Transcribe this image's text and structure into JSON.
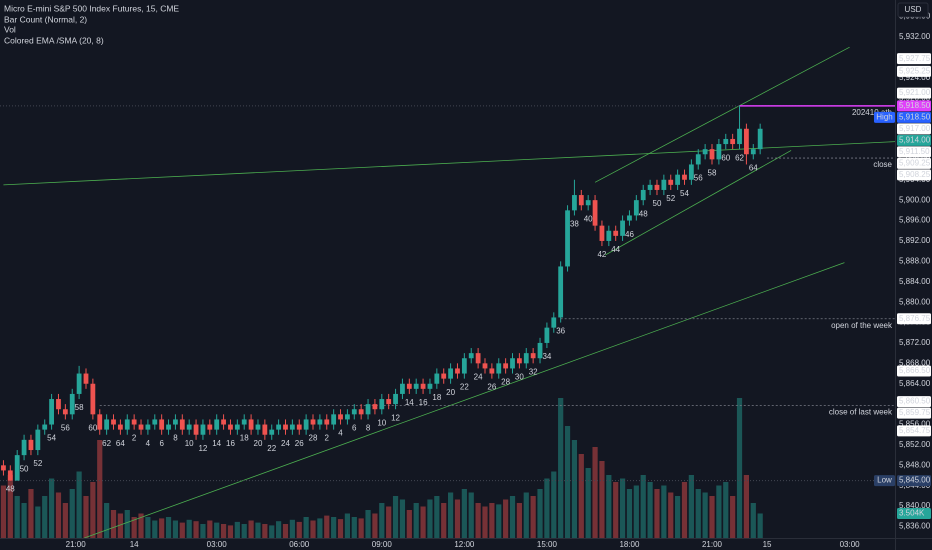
{
  "header": {
    "title": "Micro E-mini S&P 500 Index Futures, 15, CME",
    "indicators": [
      "Bar Count (Normal, 2)",
      "Vol",
      "Colored EMA /SMA (20, 8)"
    ],
    "currency": "USD"
  },
  "chart_data": {
    "type": "candlestick",
    "up_color": "#26a69a",
    "down_color": "#ef5350",
    "grid": false,
    "ylim": [
      5833.75,
      5939.25
    ],
    "xlim": [
      -0.5,
      129.6
    ],
    "yticks": [
      {
        "value": 5836,
        "label": "5,836.00"
      },
      {
        "value": 5840,
        "label": "5,840.00"
      },
      {
        "value": 5844,
        "label": "5,844.00"
      },
      {
        "value": 5848,
        "label": "5,848.00"
      },
      {
        "value": 5852,
        "label": "5,852.00"
      },
      {
        "value": 5856,
        "label": "5,856.00"
      },
      {
        "value": 5860,
        "label": "5,860.00"
      },
      {
        "value": 5864,
        "label": "5,864.00"
      },
      {
        "value": 5868,
        "label": "5,868.00"
      },
      {
        "value": 5872,
        "label": "5,872.00"
      },
      {
        "value": 5876,
        "label": "5,876.00"
      },
      {
        "value": 5880,
        "label": "5,880.00"
      },
      {
        "value": 5884,
        "label": "5,884.00"
      },
      {
        "value": 5888,
        "label": "5,888.00"
      },
      {
        "value": 5892,
        "label": "5,892.00"
      },
      {
        "value": 5896,
        "label": "5,896.00"
      },
      {
        "value": 5900,
        "label": "5,900.00"
      },
      {
        "value": 5904,
        "label": "5,904.00"
      },
      {
        "value": 5908,
        "label": "5,908.00"
      },
      {
        "value": 5912,
        "label": "5,912.00"
      },
      {
        "value": 5916,
        "label": "5,916.00"
      },
      {
        "value": 5920,
        "label": "5,920.00"
      },
      {
        "value": 5924,
        "label": "5,924.00"
      },
      {
        "value": 5928,
        "label": "5,928.00"
      },
      {
        "value": 5932,
        "label": "5,932.00"
      },
      {
        "value": 5936,
        "label": "5,936.00"
      }
    ],
    "xticks": [
      {
        "value": 10.5,
        "label": "21:00"
      },
      {
        "value": 19,
        "label": "14"
      },
      {
        "value": 31,
        "label": "03:00"
      },
      {
        "value": 43,
        "label": "06:00"
      },
      {
        "value": 55,
        "label": "09:00"
      },
      {
        "value": 67,
        "label": "12:00"
      },
      {
        "value": 79,
        "label": "15:00"
      },
      {
        "value": 91,
        "label": "18:00"
      },
      {
        "value": 103,
        "label": "21:00"
      },
      {
        "value": 111,
        "label": "15"
      },
      {
        "value": 123,
        "label": "03:00"
      }
    ],
    "open": [
      5848,
      5847,
      5845,
      5850,
      5853,
      5851,
      5855,
      5856,
      5861,
      5859,
      5858,
      5862,
      5866,
      5864,
      5858,
      5855,
      5857,
      5856,
      5855,
      5857,
      5856,
      5855,
      5856,
      5857,
      5855,
      5856,
      5857,
      5855,
      5856,
      5854,
      5856,
      5855,
      5857,
      5856,
      5855,
      5856,
      5857,
      5855,
      5856,
      5854,
      5855,
      5856,
      5855,
      5856,
      5855,
      5857,
      5856,
      5857,
      5856,
      5858,
      5857,
      5858,
      5859,
      5858,
      5860,
      5859,
      5861,
      5860,
      5862,
      5864,
      5863,
      5864,
      5863,
      5864,
      5866,
      5865,
      5867,
      5866,
      5869,
      5870,
      5868,
      5867,
      5866,
      5868,
      5867,
      5869,
      5868,
      5870,
      5869,
      5872,
      5875,
      5877,
      5887,
      5898,
      5901,
      5899,
      5900,
      5895,
      5892,
      5894,
      5893,
      5896,
      5897,
      5900,
      5902,
      5903,
      5902,
      5904,
      5903,
      5905,
      5904,
      5907,
      5909,
      5910,
      5908,
      5911,
      5912,
      5911,
      5914,
      5909,
      5910
    ],
    "high": [
      5849,
      5848,
      5851,
      5854,
      5854,
      5856,
      5857,
      5862,
      5862,
      5860,
      5863,
      5867.5,
      5867,
      5865,
      5859,
      5858,
      5858,
      5857,
      5858,
      5858,
      5857,
      5857,
      5858,
      5858,
      5857,
      5858,
      5858,
      5857,
      5857,
      5857,
      5857,
      5858,
      5858,
      5857,
      5857,
      5858,
      5858,
      5857,
      5857,
      5856,
      5857,
      5857,
      5857,
      5857,
      5858,
      5858,
      5858,
      5858,
      5859,
      5859,
      5859,
      5860,
      5860,
      5861,
      5861,
      5862,
      5862,
      5863,
      5865,
      5865,
      5865,
      5865,
      5865,
      5867,
      5867,
      5868,
      5868,
      5870,
      5871,
      5871,
      5869,
      5868,
      5869,
      5869,
      5870,
      5870,
      5871,
      5871,
      5873,
      5876,
      5878,
      5888,
      5899,
      5904,
      5902,
      5901,
      5901,
      5896,
      5895,
      5895,
      5897,
      5898,
      5901,
      5903,
      5904,
      5904,
      5905,
      5905,
      5906,
      5906,
      5908,
      5910,
      5911,
      5911,
      5912,
      5913,
      5913,
      5918.5,
      5915,
      5911,
      5915
    ],
    "low": [
      5846,
      5845,
      5846,
      5849,
      5850,
      5850,
      5854,
      5855,
      5858,
      5857,
      5857,
      5861,
      5863,
      5857,
      5854,
      5854,
      5855,
      5854,
      5854,
      5855,
      5854,
      5854,
      5855,
      5854,
      5854,
      5855,
      5854,
      5854,
      5853,
      5853,
      5854,
      5854,
      5855,
      5854,
      5854,
      5855,
      5854,
      5854,
      5853,
      5853,
      5854,
      5854,
      5854,
      5854,
      5854,
      5855,
      5855,
      5855,
      5855,
      5856,
      5856,
      5857,
      5857,
      5857,
      5858,
      5858,
      5859,
      5859,
      5861,
      5862,
      5862,
      5862,
      5862,
      5863,
      5864,
      5864,
      5865,
      5865,
      5868,
      5867,
      5866,
      5865,
      5865,
      5866,
      5866,
      5867,
      5867,
      5868,
      5868,
      5871,
      5874,
      5876,
      5886,
      5897,
      5898,
      5898,
      5894,
      5891,
      5891,
      5892,
      5892,
      5895,
      5896,
      5899,
      5901,
      5901,
      5901,
      5902,
      5902,
      5903,
      5903,
      5906,
      5908,
      5907,
      5907,
      5910,
      5910,
      5910,
      5907,
      5908,
      5909
    ],
    "close": [
      5847,
      5845,
      5850,
      5853,
      5851,
      5855,
      5856,
      5861,
      5859,
      5858,
      5862,
      5866,
      5864,
      5858,
      5855,
      5857,
      5856,
      5855,
      5857,
      5856,
      5855,
      5856,
      5857,
      5855,
      5856,
      5857,
      5855,
      5856,
      5854,
      5856,
      5855,
      5857,
      5856,
      5855,
      5856,
      5857,
      5855,
      5856,
      5854,
      5855,
      5856,
      5855,
      5856,
      5855,
      5857,
      5856,
      5857,
      5856,
      5858,
      5857,
      5858,
      5859,
      5858,
      5860,
      5859,
      5861,
      5860,
      5862,
      5864,
      5863,
      5864,
      5863,
      5864,
      5866,
      5865,
      5867,
      5866,
      5869,
      5870,
      5868,
      5867,
      5866,
      5868,
      5867,
      5869,
      5868,
      5870,
      5869,
      5872,
      5875,
      5877,
      5887,
      5898,
      5901,
      5899,
      5900,
      5895,
      5892,
      5894,
      5893,
      5896,
      5897,
      5900,
      5902,
      5903,
      5902,
      5904,
      5903,
      5905,
      5904,
      5907,
      5909,
      5910,
      5908,
      5911,
      5912,
      5911,
      5914,
      5909,
      5910,
      5914
    ],
    "volume": [
      7500,
      9000,
      6000,
      5000,
      7000,
      4500,
      6000,
      8500,
      6500,
      5000,
      7000,
      9500,
      6000,
      8000,
      14000,
      5000,
      4000,
      3500,
      4000,
      3000,
      3500,
      3000,
      2500,
      2800,
      3000,
      2500,
      2200,
      2600,
      2400,
      2000,
      2500,
      2200,
      2000,
      1800,
      2300,
      2000,
      2500,
      2200,
      2000,
      1800,
      2400,
      2000,
      2600,
      2300,
      3000,
      2500,
      2800,
      3200,
      3000,
      2700,
      3500,
      3000,
      2800,
      4000,
      3500,
      5000,
      4500,
      6000,
      5500,
      4000,
      5000,
      4500,
      5500,
      6000,
      5000,
      6500,
      5500,
      7000,
      6500,
      5000,
      4500,
      5000,
      4800,
      5500,
      6000,
      5000,
      6500,
      6000,
      7000,
      8500,
      9500,
      20000,
      16000,
      14000,
      12000,
      10000,
      13000,
      11000,
      9000,
      8000,
      8500,
      7000,
      7500,
      9000,
      8000,
      7000,
      7500,
      6500,
      6000,
      8000,
      9000,
      7000,
      6500,
      6000,
      7500,
      8000,
      6000,
      20000,
      9000,
      5000,
      3504
    ],
    "volume_last_label": "3.504K",
    "bar_count": [
      48,
      50,
      52,
      54,
      56,
      58,
      60,
      62,
      64,
      2,
      4,
      6,
      8,
      10,
      12,
      14,
      16,
      18,
      20,
      22,
      24,
      26,
      28,
      2,
      4,
      6,
      8,
      10,
      12,
      14,
      16,
      18,
      20,
      22,
      24,
      26,
      28,
      30,
      32,
      34,
      36,
      38,
      40,
      42,
      44,
      46,
      48,
      50,
      52,
      54,
      56,
      58,
      60,
      62,
      64
    ],
    "high_marker": {
      "label": "High",
      "value": 5918.5,
      "value_label": "5,918.50"
    },
    "low_marker": {
      "label": "Low",
      "value": 5845,
      "value_label": "5,845.00"
    },
    "levels": [
      {
        "name": "202410 ath",
        "value": 5918.5,
        "from": 107,
        "color": "#e040fb"
      },
      {
        "name": "close",
        "value": 5908.25,
        "from": 111,
        "color": "#787b86"
      },
      {
        "name": "open of the week",
        "value": 5876.75,
        "from": 81,
        "color": "#787b86"
      },
      {
        "name": "close of last week",
        "value": 5859.75,
        "from": 14,
        "color": "#787b86"
      }
    ],
    "trendlines": [
      {
        "x": [
          0,
          130
        ],
        "y": [
          5903,
          5911.5
        ],
        "color": "#4caf50"
      },
      {
        "x": [
          86,
          123
        ],
        "y": [
          5903.5,
          5930
        ],
        "color": "#4caf50"
      },
      {
        "x": [
          87.5,
          114.5
        ],
        "y": [
          5889.25,
          5909.75
        ],
        "color": "#4caf50"
      },
      {
        "x": [
          11.75,
          122.25
        ],
        "y": [
          5833.75,
          5887.75
        ],
        "color": "#4caf50"
      }
    ],
    "axis_labels": [
      {
        "value": 5927.75,
        "label": "5,927.75",
        "color": "#ffffff"
      },
      {
        "value": 5925.25,
        "label": "5,925.25",
        "color": "#ffffff"
      },
      {
        "value": 5921,
        "label": "5,921.00",
        "color": "#ffffff"
      },
      {
        "value": 5918.5,
        "label": "5,918.50",
        "color": "#e040fb"
      },
      {
        "value": 5917,
        "label": "5,917.00",
        "color": "#ffffff"
      },
      {
        "value": 5914,
        "label": "5,914.00",
        "color": "#26a69a"
      },
      {
        "value": 5911.5,
        "label": "5,911.50",
        "color": "#ffffff"
      },
      {
        "value": 5909.25,
        "label": "5,909.25",
        "color": "#ffffff"
      },
      {
        "value": 5908.25,
        "label": "5,908.25",
        "color": "#ffffff"
      },
      {
        "value": 5876.75,
        "label": "5,876.75",
        "color": "#ffffff"
      },
      {
        "value": 5866.5,
        "label": "5,866.50",
        "color": "#ffffff"
      },
      {
        "value": 5860.5,
        "label": "5,860.50",
        "color": "#ffffff"
      },
      {
        "value": 5859.75,
        "label": "5,859.75",
        "color": "#ffffff"
      },
      {
        "value": 5854.75,
        "label": "5,854.75",
        "color": "#ffffff"
      }
    ]
  }
}
